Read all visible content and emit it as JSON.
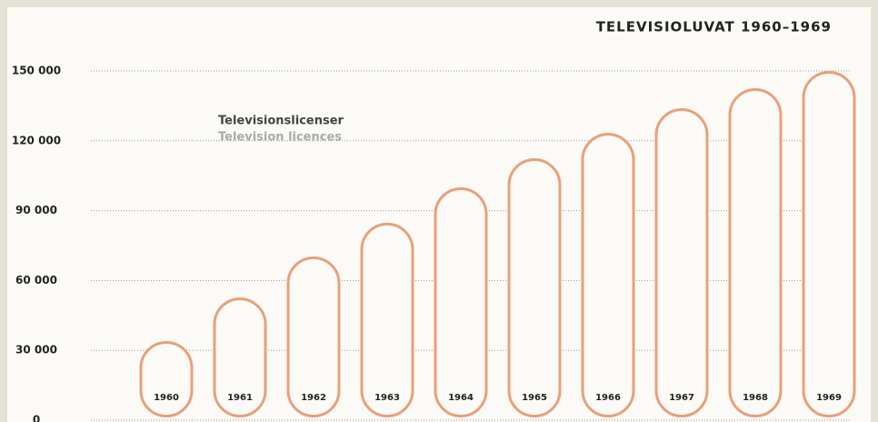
{
  "chart_data": {
    "type": "bar",
    "title": "TELEVISIOLUVAT 1960–1969",
    "subtitle": [
      "Televisionslicenser",
      "Television licences"
    ],
    "categories": [
      "1960",
      "1961",
      "1962",
      "1963",
      "1964",
      "1965",
      "1966",
      "1967",
      "1968",
      "1969"
    ],
    "values": [
      34000,
      52700,
      70300,
      84800,
      100000,
      112500,
      123400,
      134000,
      142600,
      150000
    ],
    "color": "#e8a07a",
    "ylim": [
      0,
      150000
    ],
    "yticks": [
      0,
      {
        "value": 30000,
        "label": "30 000"
      },
      {
        "value": 60000,
        "label": "60 000"
      },
      {
        "value": 90000,
        "label": "90 000"
      },
      {
        "value": 120000,
        "label": "120 000"
      },
      {
        "value": 150000,
        "label": "150 000"
      }
    ],
    "grid": true
  }
}
